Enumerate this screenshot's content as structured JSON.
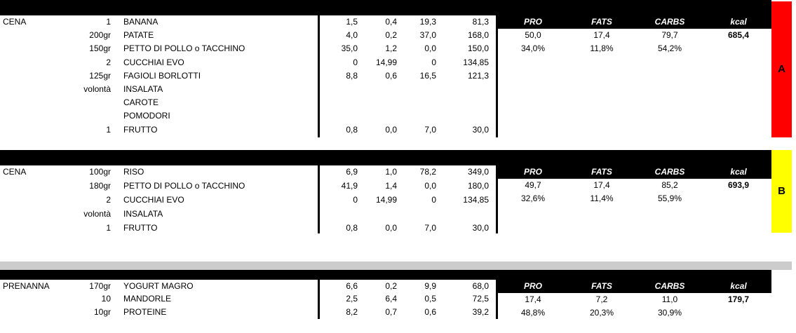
{
  "sections": [
    {
      "meal": "CENA",
      "badge": "A",
      "badge_color": "#ff0000",
      "rows": [
        {
          "qty": "1",
          "food": "BANANA",
          "p": "1,5",
          "f": "0,4",
          "c": "19,3",
          "k": "81,3"
        },
        {
          "qty": "200gr",
          "food": "PATATE",
          "p": "4,0",
          "f": "0,2",
          "c": "37,0",
          "k": "168,0"
        },
        {
          "qty": "150gr",
          "food": "PETTO DI POLLO o TACCHINO",
          "p": "35,0",
          "f": "1,2",
          "c": "0,0",
          "k": "150,0"
        },
        {
          "qty": "2",
          "food": "CUCCHIAI EVO",
          "p": "0",
          "f": "14,99",
          "c": "0",
          "k": "134,85"
        },
        {
          "qty": "125gr",
          "food": "FAGIOLI BORLOTTI",
          "p": "8,8",
          "f": "0,6",
          "c": "16,5",
          "k": "121,3"
        },
        {
          "qty": "volontà",
          "food": "INSALATA",
          "p": "",
          "f": "",
          "c": "",
          "k": ""
        },
        {
          "qty": "",
          "food": "CAROTE",
          "p": "",
          "f": "",
          "c": "",
          "k": ""
        },
        {
          "qty": "",
          "food": "POMODORI",
          "p": "",
          "f": "",
          "c": "",
          "k": ""
        },
        {
          "qty": "1",
          "food": "FRUTTO",
          "p": "0,8",
          "f": "0,0",
          "c": "7,0",
          "k": "30,0"
        }
      ],
      "summary": {
        "headers": [
          "PRO",
          "FATS",
          "CARBS",
          "kcal"
        ],
        "totals": [
          "50,0",
          "17,4",
          "79,7",
          "685,4"
        ],
        "percents": [
          "34,0%",
          "11,8%",
          "54,2%"
        ]
      }
    },
    {
      "meal": "CENA",
      "badge": "B",
      "badge_color": "#ffff00",
      "rows": [
        {
          "qty": "100gr",
          "food": "RISO",
          "p": "6,9",
          "f": "1,0",
          "c": "78,2",
          "k": "349,0"
        },
        {
          "qty": "180gr",
          "food": "PETTO DI POLLO o TACCHINO",
          "p": "41,9",
          "f": "1,4",
          "c": "0,0",
          "k": "180,0"
        },
        {
          "qty": "2",
          "food": "CUCCHIAI EVO",
          "p": "0",
          "f": "14,99",
          "c": "0",
          "k": "134,85"
        },
        {
          "qty": "volontà",
          "food": "INSALATA",
          "p": "",
          "f": "",
          "c": "",
          "k": ""
        },
        {
          "qty": "1",
          "food": "FRUTTO",
          "p": "0,8",
          "f": "0,0",
          "c": "7,0",
          "k": "30,0"
        }
      ],
      "summary": {
        "headers": [
          "PRO",
          "FATS",
          "CARBS",
          "kcal"
        ],
        "totals": [
          "49,7",
          "17,4",
          "85,2",
          "693,9"
        ],
        "percents": [
          "32,6%",
          "11,4%",
          "55,9%"
        ]
      }
    },
    {
      "meal": "PRENANNA",
      "rows": [
        {
          "qty": "170gr",
          "food": "YOGURT MAGRO",
          "p": "6,6",
          "f": "0,2",
          "c": "9,9",
          "k": "68,0"
        },
        {
          "qty": "10",
          "food": "MANDORLE",
          "p": "2,5",
          "f": "6,4",
          "c": "0,5",
          "k": "72,5"
        },
        {
          "qty": "10gr",
          "food": "PROTEINE",
          "p": "8,2",
          "f": "0,7",
          "c": "0,6",
          "k": "39,2"
        }
      ],
      "summary": {
        "headers": [
          "PRO",
          "FATS",
          "CARBS",
          "kcal"
        ],
        "totals": [
          "17,4",
          "7,2",
          "11,0",
          "179,7"
        ],
        "percents": [
          "48,8%",
          "20,3%",
          "30,9%"
        ]
      }
    }
  ]
}
